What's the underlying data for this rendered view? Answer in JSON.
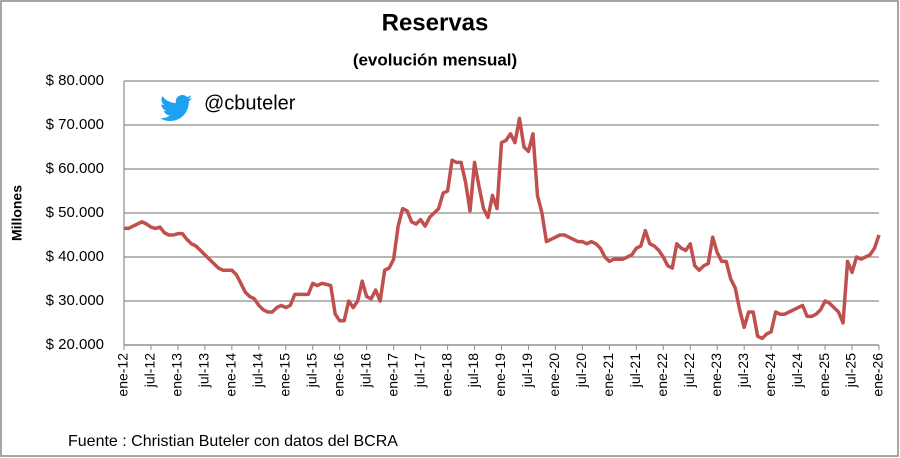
{
  "chart_data": {
    "type": "line",
    "title": "Reservas",
    "subtitle": "(evolución mensual)",
    "y_label": "Millones",
    "annotation": "@cbuteler",
    "source": "Fuente : Christian Buteler con datos del BCRA",
    "categories": [
      "ene-12",
      null,
      null,
      null,
      null,
      null,
      "jul-12",
      null,
      null,
      null,
      null,
      null,
      "ene-13",
      null,
      null,
      null,
      null,
      null,
      "jul-13",
      null,
      null,
      null,
      null,
      null,
      "ene-14",
      null,
      null,
      null,
      null,
      null,
      "jul-14",
      null,
      null,
      null,
      null,
      null,
      "ene-15",
      null,
      null,
      null,
      null,
      null,
      "jul-15",
      null,
      null,
      null,
      null,
      null,
      "ene-16",
      null,
      null,
      null,
      null,
      null,
      "jul-16",
      null,
      null,
      null,
      null,
      null,
      "ene-17",
      null,
      null,
      null,
      null,
      null,
      "jul-17",
      null,
      null,
      null,
      null,
      null,
      "ene-18",
      null,
      null,
      null,
      null,
      null,
      "jul-18",
      null,
      null,
      null,
      null,
      null,
      "ene-19",
      null,
      null,
      null,
      null,
      null,
      "jul-19",
      null,
      null,
      null,
      null,
      null,
      "ene-20",
      null,
      null,
      null,
      null,
      null,
      "jul-20",
      null,
      null,
      null,
      null,
      null,
      "ene-21",
      null,
      null,
      null,
      null,
      null,
      "jul-21",
      null,
      null,
      null,
      null,
      null,
      "ene-22",
      null,
      null,
      null,
      null,
      null,
      "jul-22",
      null,
      null,
      null,
      null,
      null,
      "ene-23",
      null,
      null,
      null,
      null,
      null,
      "jul-23",
      null,
      null,
      null,
      null,
      null,
      "ene-24",
      null,
      null,
      null,
      null,
      null,
      "jul-24",
      null,
      null,
      null,
      null,
      null,
      "ene-25",
      null,
      null,
      null,
      null,
      null,
      "jul-25",
      null,
      null,
      null,
      null,
      null,
      "ene-26"
    ],
    "series": [
      {
        "name": "Reservas",
        "color": "#c0504d",
        "values": [
          46500,
          46500,
          47000,
          47500,
          48000,
          47500,
          46800,
          46500,
          46800,
          45500,
          45000,
          45000,
          45300,
          45300,
          44000,
          43000,
          42500,
          41500,
          40500,
          39500,
          38500,
          37500,
          37000,
          37000,
          37000,
          36000,
          34000,
          32000,
          31000,
          30500,
          29000,
          28000,
          27500,
          27500,
          28500,
          29000,
          28500,
          29000,
          31500,
          31500,
          31500,
          31500,
          34000,
          33500,
          34000,
          33800,
          33500,
          27000,
          25500,
          25500,
          30000,
          28500,
          30000,
          34500,
          31000,
          30500,
          32500,
          30000,
          37000,
          37500,
          39500,
          47000,
          51000,
          50500,
          48000,
          47500,
          48500,
          47000,
          49000,
          50000,
          51000,
          54500,
          55000,
          62000,
          61500,
          61500,
          57000,
          50500,
          61500,
          56000,
          51000,
          49000,
          54000,
          51000,
          66000,
          66500,
          68000,
          66000,
          71500,
          65000,
          64000,
          68000,
          54000,
          50000,
          43500,
          44000,
          44500,
          45000,
          45000,
          44500,
          44000,
          43500,
          43500,
          43000,
          43500,
          43000,
          42000,
          40000,
          39000,
          39500,
          39500,
          39500,
          40000,
          40500,
          42000,
          42500,
          46000,
          43000,
          42500,
          41500,
          40000,
          38000,
          37500,
          43000,
          42000,
          41500,
          43000,
          38000,
          37000,
          38000,
          38500,
          44500,
          41000,
          39000,
          39000,
          35000,
          33000,
          28000,
          24000,
          27500,
          27500,
          22000,
          21500,
          22500,
          23000,
          27500,
          27000,
          27000,
          27500,
          28000,
          28500,
          29000,
          26500,
          26500,
          27000,
          28000,
          30000,
          29500,
          28500,
          27500,
          25000,
          39000,
          36500,
          40000,
          39500,
          40000,
          40500,
          42000,
          45000
        ]
      }
    ],
    "ylim": [
      20000,
      80000
    ],
    "yticks": [
      {
        "value": 20000,
        "label": "$ 20.000"
      },
      {
        "value": 30000,
        "label": "$ 30.000"
      },
      {
        "value": 40000,
        "label": "$ 40.000"
      },
      {
        "value": 50000,
        "label": "$ 50.000"
      },
      {
        "value": 60000,
        "label": "$ 60.000"
      },
      {
        "value": 70000,
        "label": "$ 70.000"
      },
      {
        "value": 80000,
        "label": "$ 80.000"
      }
    ],
    "grid": true
  }
}
